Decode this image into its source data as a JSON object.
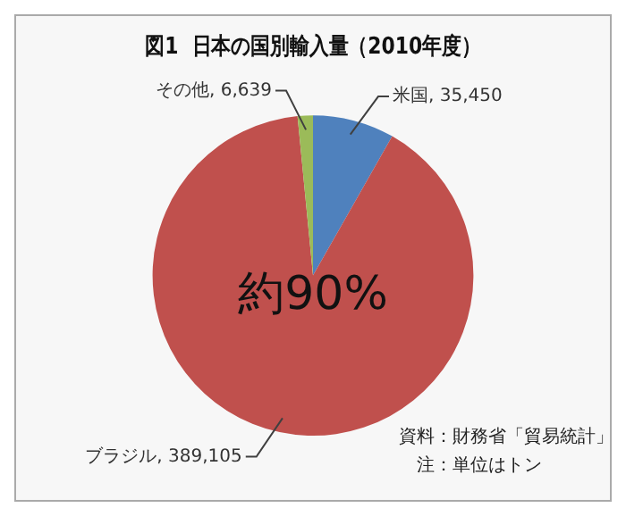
{
  "chart_data": {
    "type": "pie",
    "title": "図1  日本の国別輸入量（2010年度）",
    "categories": [
      "米国",
      "ブラジル",
      "その他"
    ],
    "values": [
      35450,
      389105,
      6639
    ],
    "value_labels": [
      "35,450",
      "389,105",
      "6,639"
    ],
    "colors": [
      "#4f81bd",
      "#c0504d",
      "#9bbb59"
    ],
    "annotations": [
      "約90%",
      "資料：財務省「貿易統計」",
      "注：単位はトン"
    ],
    "legend": false
  }
}
